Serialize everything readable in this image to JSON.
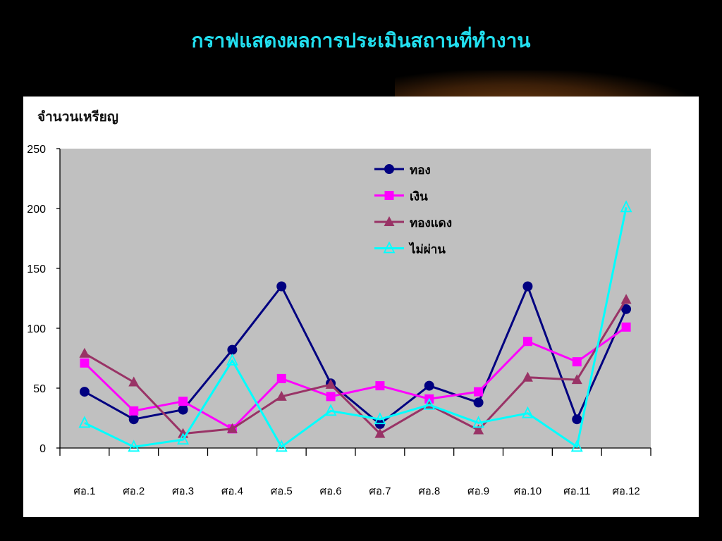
{
  "slide": {
    "title": "กราฟแสดงผลการประเมินสถานที่ทำงาน"
  },
  "chart_data": {
    "type": "line",
    "title": "กราฟแสดงผลการประเมินสถานที่ทำงาน",
    "ylabel": "จำนวนเหรียญ",
    "xlabel": "",
    "ylim": [
      0,
      250
    ],
    "yticks": [
      0,
      50,
      100,
      150,
      200,
      250
    ],
    "grid": false,
    "plot_background": "#c0c0c0",
    "legend_position": "top-center",
    "categories": [
      "ศอ.1",
      "ศอ.2",
      "ศอ.3",
      "ศอ.4",
      "ศอ.5",
      "ศอ.6",
      "ศอ.7",
      "ศอ.8",
      "ศอ.9",
      "ศอ.10",
      "ศอ.11",
      "ศอ.12"
    ],
    "series": [
      {
        "name": "ทอง",
        "color": "#000080",
        "marker": "circle",
        "values": [
          47,
          24,
          32,
          82,
          135,
          54,
          20,
          52,
          38,
          135,
          24,
          116
        ]
      },
      {
        "name": "เงิน",
        "color": "#ff00ff",
        "marker": "square",
        "values": [
          71,
          31,
          39,
          16,
          58,
          43,
          52,
          41,
          47,
          89,
          72,
          101
        ]
      },
      {
        "name": "ทองแดง",
        "color": "#993366",
        "marker": "triangle",
        "values": [
          79,
          55,
          12,
          16,
          43,
          53,
          12,
          36,
          15,
          59,
          57,
          124
        ]
      },
      {
        "name": "ไม่ผ่าน",
        "color": "#00ffff",
        "marker": "triangle-open",
        "values": [
          21,
          1,
          7,
          73,
          1,
          31,
          24,
          36,
          21,
          29,
          1,
          201
        ]
      }
    ]
  }
}
